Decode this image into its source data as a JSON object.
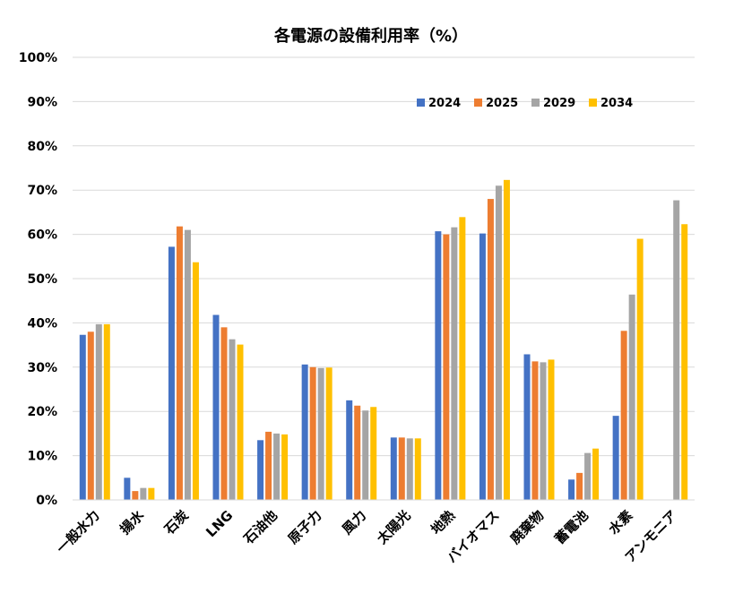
{
  "chart_data": {
    "type": "bar",
    "title": "各電源の設備利用率（%）",
    "xlabel": "",
    "ylabel": "",
    "ylim": [
      0,
      100
    ],
    "yticks": [
      "0%",
      "10%",
      "20%",
      "30%",
      "40%",
      "50%",
      "60%",
      "70%",
      "80%",
      "90%",
      "100%"
    ],
    "grid": true,
    "legend_position": "top-right",
    "categories": [
      "一般水力",
      "揚水",
      "石炭",
      "LNG",
      "石油他",
      "原子力",
      "風力",
      "太陽光",
      "地熱",
      "バイオマス",
      "廃棄物",
      "蓄電池",
      "水素",
      "アンモニア"
    ],
    "series": [
      {
        "name": "2024",
        "color": "#4472c4",
        "values": [
          37.3,
          5.0,
          57.2,
          41.8,
          13.5,
          30.6,
          22.5,
          14.1,
          60.7,
          60.2,
          32.9,
          4.6,
          19.0,
          null
        ]
      },
      {
        "name": "2025",
        "color": "#ed7d31",
        "values": [
          38.0,
          2.0,
          61.8,
          39.0,
          15.4,
          30.0,
          21.3,
          14.1,
          60.0,
          68.0,
          31.3,
          6.1,
          38.2,
          null
        ]
      },
      {
        "name": "2029",
        "color": "#a5a5a5",
        "values": [
          39.7,
          2.7,
          61.0,
          36.3,
          15.0,
          29.8,
          20.2,
          13.9,
          61.6,
          71.0,
          31.1,
          10.6,
          46.4,
          67.7
        ]
      },
      {
        "name": "2034",
        "color": "#ffc000",
        "values": [
          39.7,
          2.7,
          53.7,
          35.1,
          14.8,
          29.9,
          21.0,
          13.9,
          63.9,
          72.3,
          31.7,
          11.6,
          59.0,
          62.3
        ]
      }
    ]
  }
}
